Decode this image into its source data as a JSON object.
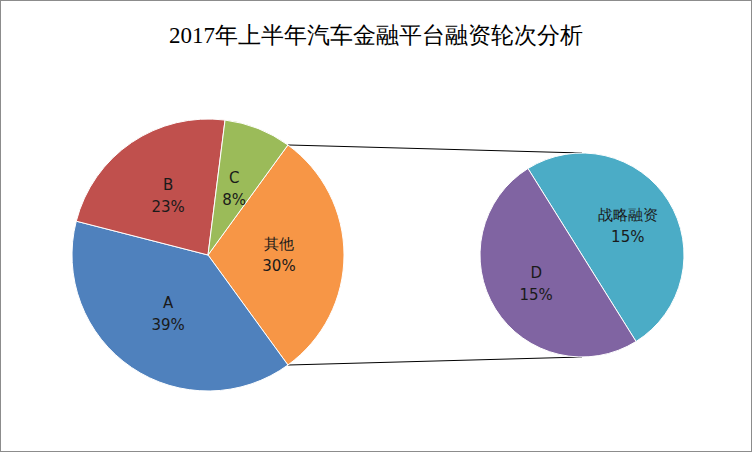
{
  "chart_data": [
    {
      "type": "pie",
      "title": "2017年上半年汽车金融平台融资轮次分析",
      "categories": [
        "其他",
        "A",
        "B",
        "C"
      ],
      "values": [
        30,
        39,
        23,
        8
      ],
      "value_labels": [
        "30%",
        "39%",
        "23%",
        "8%"
      ],
      "colors": [
        "#f79646",
        "#4f81bd",
        "#c0504d",
        "#9bbb59"
      ],
      "data_labels": true
    },
    {
      "type": "pie",
      "categories": [
        "战略融资",
        "D"
      ],
      "values": [
        15,
        15
      ],
      "value_labels": [
        "15%",
        "15%"
      ],
      "colors": [
        "#4bacc6",
        "#8064a2"
      ],
      "data_labels": true
    }
  ]
}
